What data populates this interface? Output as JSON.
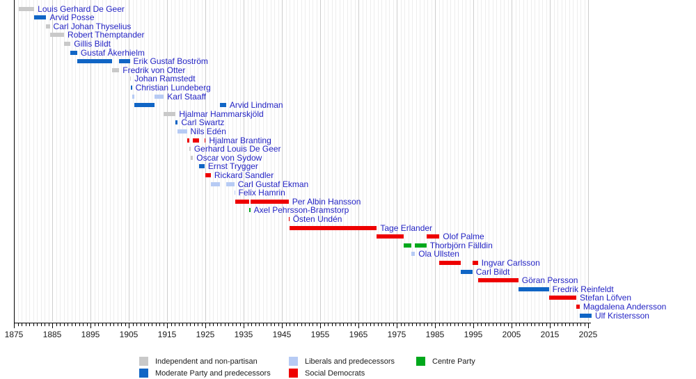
{
  "chart_data": {
    "type": "timeline",
    "description": "Terms of office of Prime Ministers of Sweden shown as horizontal bars colored by party",
    "x_axis": {
      "min": 1875,
      "max": 2025,
      "major_tick_interval": 10,
      "minor_tick_interval": 1,
      "tick_labels": [
        "1875",
        "1885",
        "1895",
        "1905",
        "1915",
        "1925",
        "1935",
        "1945",
        "1955",
        "1965",
        "1975",
        "1985",
        "1995",
        "2005",
        "2015",
        "2025"
      ]
    },
    "party_colors": {
      "independent": "#c9c9c9",
      "moderate": "#1065c5",
      "liberals": "#b7cbf4",
      "social_democrats": "#ee0000",
      "centre": "#00a81c"
    },
    "legend": [
      {
        "party": "independent",
        "label": "Independent and non-partisan"
      },
      {
        "party": "liberals",
        "label": "Liberals and predecessors"
      },
      {
        "party": "centre",
        "label": "Centre Party"
      },
      {
        "party": "moderate",
        "label": "Moderate Party and predecessors"
      },
      {
        "party": "social_democrats",
        "label": "Social Democrats"
      }
    ],
    "prime_ministers": [
      {
        "name": "Louis Gerhard De Geer",
        "party": "independent",
        "terms": [
          [
            1876.22,
            1880.3
          ]
        ]
      },
      {
        "name": "Arvid Posse",
        "party": "moderate",
        "terms": [
          [
            1880.3,
            1883.45
          ]
        ]
      },
      {
        "name": "Carl Johan Thyselius",
        "party": "independent",
        "terms": [
          [
            1883.45,
            1884.37
          ]
        ]
      },
      {
        "name": "Robert Themptander",
        "party": "independent",
        "terms": [
          [
            1884.37,
            1888.1
          ]
        ]
      },
      {
        "name": "Gillis Bildt",
        "party": "independent",
        "terms": [
          [
            1888.1,
            1889.78
          ]
        ]
      },
      {
        "name": "Gustaf Åkerhielm",
        "party": "moderate",
        "terms": [
          [
            1889.78,
            1891.52
          ]
        ]
      },
      {
        "name": "Erik Gustaf Boström",
        "party": "moderate",
        "terms": [
          [
            1891.52,
            1900.7
          ],
          [
            1902.51,
            1905.28
          ]
        ]
      },
      {
        "name": "Fredrik von Otter",
        "party": "independent",
        "terms": [
          [
            1900.7,
            1902.51
          ]
        ]
      },
      {
        "name": "Johan Ramstedt",
        "party": "independent",
        "terms": [
          [
            1905.28,
            1905.58
          ]
        ]
      },
      {
        "name": "Christian Lundeberg",
        "party": "moderate",
        "terms": [
          [
            1905.58,
            1905.85
          ]
        ]
      },
      {
        "name": "Karl Staaff",
        "party": "liberals",
        "terms": [
          [
            1905.85,
            1906.41
          ],
          [
            1911.77,
            1914.13
          ]
        ]
      },
      {
        "name": "Arvid Lindman",
        "party": "moderate",
        "terms": [
          [
            1906.41,
            1911.77
          ],
          [
            1928.75,
            1930.43
          ]
        ]
      },
      {
        "name": "Hjalmar Hammarskjöld",
        "party": "independent",
        "terms": [
          [
            1914.13,
            1917.24
          ]
        ]
      },
      {
        "name": "Carl Swartz",
        "party": "moderate",
        "terms": [
          [
            1917.24,
            1917.8
          ]
        ]
      },
      {
        "name": "Nils Edén",
        "party": "liberals",
        "terms": [
          [
            1917.8,
            1920.19
          ]
        ]
      },
      {
        "name": "Hjalmar Branting",
        "party": "social_democrats",
        "terms": [
          [
            1920.19,
            1920.82
          ],
          [
            1921.78,
            1923.3
          ],
          [
            1924.8,
            1925.07
          ]
        ]
      },
      {
        "name": "Gerhard Louis De Geer",
        "party": "independent",
        "terms": [
          [
            1920.82,
            1921.15
          ]
        ]
      },
      {
        "name": "Oscar von Sydow",
        "party": "independent",
        "terms": [
          [
            1921.15,
            1921.78
          ]
        ]
      },
      {
        "name": "Ernst Trygger",
        "party": "moderate",
        "terms": [
          [
            1923.3,
            1924.8
          ]
        ]
      },
      {
        "name": "Rickard Sandler",
        "party": "social_democrats",
        "terms": [
          [
            1925.07,
            1926.43
          ]
        ]
      },
      {
        "name": "Carl Gustaf Ekman",
        "party": "liberals",
        "terms": [
          [
            1926.43,
            1928.75
          ],
          [
            1930.43,
            1932.6
          ]
        ]
      },
      {
        "name": "Felix Hamrin",
        "party": "liberals",
        "terms": [
          [
            1932.6,
            1932.73
          ]
        ]
      },
      {
        "name": "Per Albin Hansson",
        "party": "social_democrats",
        "terms": [
          [
            1932.73,
            1936.47
          ],
          [
            1936.74,
            1946.77
          ]
        ]
      },
      {
        "name": "Axel Pehrsson-Bramstorp",
        "party": "centre",
        "terms": [
          [
            1936.47,
            1936.74
          ]
        ]
      },
      {
        "name": "Östen Undén",
        "party": "social_democrats",
        "terms": [
          [
            1946.77,
            1946.95
          ]
        ]
      },
      {
        "name": "Tage Erlander",
        "party": "social_democrats",
        "terms": [
          [
            1946.95,
            1969.79
          ]
        ]
      },
      {
        "name": "Olof Palme",
        "party": "social_democrats",
        "terms": [
          [
            1969.79,
            1976.77
          ],
          [
            1982.77,
            1986.16
          ]
        ]
      },
      {
        "name": "Thorbjörn Fälldin",
        "party": "centre",
        "terms": [
          [
            1976.77,
            1978.8
          ],
          [
            1979.78,
            1982.77
          ]
        ]
      },
      {
        "name": "Ola Ullsten",
        "party": "liberals",
        "terms": [
          [
            1978.8,
            1979.78
          ]
        ]
      },
      {
        "name": "Ingvar Carlsson",
        "party": "social_democrats",
        "terms": [
          [
            1986.16,
            1991.76
          ],
          [
            1994.77,
            1996.22
          ]
        ]
      },
      {
        "name": "Carl Bildt",
        "party": "moderate",
        "terms": [
          [
            1991.76,
            1994.77
          ]
        ]
      },
      {
        "name": "Göran Persson",
        "party": "social_democrats",
        "terms": [
          [
            1996.22,
            2006.77
          ]
        ]
      },
      {
        "name": "Fredrik Reinfeldt",
        "party": "moderate",
        "terms": [
          [
            2006.77,
            2014.75
          ]
        ]
      },
      {
        "name": "Stefan Löfven",
        "party": "social_democrats",
        "terms": [
          [
            2014.75,
            2021.91
          ]
        ]
      },
      {
        "name": "Magdalena Andersson",
        "party": "social_democrats",
        "terms": [
          [
            2021.91,
            2022.8
          ]
        ]
      },
      {
        "name": "Ulf Kristersson",
        "party": "moderate",
        "terms": [
          [
            2022.8,
            2025.9
          ]
        ]
      }
    ]
  }
}
